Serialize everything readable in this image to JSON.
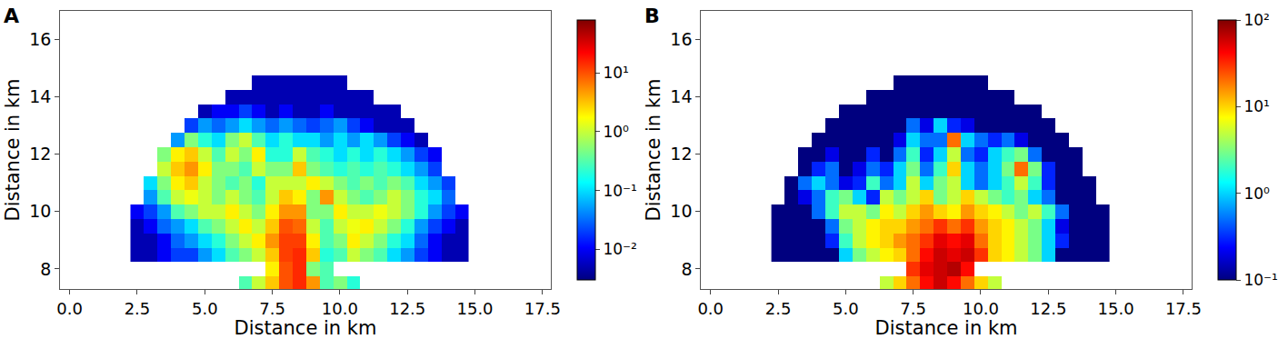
{
  "chart_data": [
    {
      "type": "heatmap",
      "title": "A",
      "log": true,
      "xlabel": "Distance in km",
      "ylabel": "Distance in km",
      "xlim": [
        -0.35,
        17.8
      ],
      "ylim": [
        7.3,
        17.0
      ],
      "xticks": [
        {
          "value": 0,
          "label": "0.0"
        },
        2.5,
        {
          "value": 5,
          "label": "5.0"
        },
        7.5,
        {
          "value": 10,
          "label": "10.0"
        },
        12.5,
        {
          "value": 15,
          "label": "15.0"
        },
        17.5
      ],
      "yticks": [
        8,
        10,
        12,
        14,
        16
      ],
      "zlim": [
        0.003,
        80
      ],
      "zticks": [
        {
          "value": 0.01,
          "label": "10⁻²"
        },
        {
          "value": 0.1,
          "label": "10⁻¹"
        },
        {
          "value": 1,
          "label": "10⁰"
        },
        {
          "value": 10,
          "label": "10¹"
        }
      ],
      "x": [
        2.5,
        3,
        3.5,
        4,
        4.5,
        5,
        5.5,
        6,
        6.5,
        7,
        7.5,
        8,
        8.5,
        9,
        9.5,
        10,
        10.5,
        11,
        11.5,
        12,
        12.5,
        13,
        13.5,
        14,
        14.5
      ],
      "y": [
        7.5,
        8,
        8.5,
        9,
        9.5,
        10,
        10.5,
        11,
        11.5,
        12,
        12.5,
        13,
        13.5,
        14,
        14.5
      ],
      "cells": [
        [
          null,
          null,
          null,
          null,
          null,
          null,
          null,
          null,
          0.3,
          1,
          3,
          10,
          15,
          5,
          0.3,
          0.5,
          0.2,
          null,
          null,
          null,
          null,
          null,
          null,
          null,
          null
        ],
        [
          null,
          null,
          null,
          null,
          null,
          null,
          null,
          null,
          null,
          null,
          2,
          10,
          15,
          0.5,
          0.3,
          null,
          null,
          null,
          null,
          null,
          null,
          null,
          null,
          null,
          null
        ],
        [
          0.005,
          0.005,
          0.01,
          0.02,
          0.02,
          0.05,
          0.1,
          0.3,
          0.5,
          1,
          3,
          12,
          15,
          3,
          0.2,
          0.3,
          1,
          0.5,
          0.3,
          0.1,
          0.05,
          0.02,
          0.01,
          0.005,
          0.005
        ],
        [
          0.005,
          0.005,
          0.01,
          0.03,
          0.05,
          0.1,
          0.2,
          0.5,
          1,
          2,
          5,
          12,
          12,
          2,
          0.3,
          0.5,
          2,
          1,
          0.5,
          0.2,
          0.1,
          0.03,
          0.01,
          0.005,
          0.005
        ],
        [
          0.005,
          0.01,
          0.03,
          0.05,
          0.1,
          0.3,
          0.5,
          1,
          2,
          1,
          3,
          10,
          8,
          1,
          0.3,
          1,
          1.5,
          2,
          1,
          0.5,
          0.2,
          0.05,
          0.02,
          0.01,
          0.005
        ],
        [
          0.01,
          0.02,
          0.05,
          0.3,
          0.5,
          1,
          1,
          2,
          1,
          0.5,
          2,
          5,
          5,
          0.5,
          0.5,
          2,
          1,
          1,
          1.5,
          1,
          0.5,
          0.2,
          0.05,
          0.02,
          0.01
        ],
        [
          null,
          0.05,
          0.3,
          1,
          1.5,
          1,
          0.5,
          1,
          0.5,
          0.3,
          1,
          3,
          2,
          0.5,
          5,
          1,
          0.5,
          0.3,
          0.5,
          1,
          0.5,
          0.2,
          0.1,
          0.03,
          null
        ],
        [
          null,
          0.1,
          0.5,
          2,
          3,
          1,
          0.5,
          0.3,
          0.5,
          0.2,
          1,
          1,
          1,
          2,
          1,
          0.5,
          0.3,
          0.5,
          0.3,
          0.5,
          0.3,
          0.1,
          0.05,
          0.02,
          null
        ],
        [
          null,
          null,
          1,
          3,
          5,
          2,
          0.5,
          0.5,
          0.3,
          1,
          0.5,
          0.5,
          3,
          0.5,
          0.3,
          0.2,
          0.3,
          0.2,
          0.3,
          0.2,
          0.1,
          0.05,
          0.02,
          null,
          null
        ],
        [
          null,
          null,
          0.5,
          2,
          3,
          1,
          0.3,
          1,
          0.5,
          2,
          0.2,
          0.2,
          1,
          0.3,
          0.2,
          0.1,
          0.2,
          0.1,
          0.2,
          0.1,
          0.05,
          0.02,
          0.01,
          null,
          null
        ],
        [
          null,
          null,
          null,
          0.05,
          0.5,
          0.2,
          0.1,
          0.5,
          1,
          0.3,
          0.1,
          0.2,
          0.1,
          0.1,
          0.05,
          0.1,
          0.05,
          0.1,
          0.05,
          0.02,
          0.01,
          0.005,
          null,
          null,
          null
        ],
        [
          null,
          null,
          null,
          null,
          0.02,
          0.05,
          0.03,
          0.05,
          0.1,
          0.05,
          0.03,
          0.05,
          0.03,
          0.02,
          0.03,
          0.05,
          0.02,
          0.01,
          0.005,
          0.005,
          0.005,
          null,
          null,
          null,
          null
        ],
        [
          null,
          null,
          null,
          null,
          null,
          0.005,
          0.01,
          0.01,
          0.02,
          0.01,
          0.005,
          0.01,
          0.005,
          0.005,
          0.01,
          0.005,
          0.005,
          0.005,
          0.005,
          0.005,
          null,
          null,
          null,
          null,
          null
        ],
        [
          null,
          null,
          null,
          null,
          null,
          null,
          null,
          0.005,
          0.005,
          0.005,
          0.005,
          0.005,
          0.005,
          0.005,
          0.005,
          0.005,
          0.005,
          0.005,
          null,
          null,
          null,
          null,
          null,
          null,
          null
        ],
        [
          null,
          null,
          null,
          null,
          null,
          null,
          null,
          null,
          null,
          0.005,
          0.005,
          0.005,
          0.005,
          0.005,
          0.005,
          0.005,
          null,
          null,
          null,
          null,
          null,
          null,
          null,
          null,
          null
        ]
      ]
    },
    {
      "type": "heatmap",
      "title": "B",
      "log": true,
      "xlabel": "Distance in km",
      "ylabel": "Distance in km",
      "xlim": [
        -0.35,
        17.8
      ],
      "ylim": [
        7.3,
        17.0
      ],
      "xticks": [
        {
          "value": 0,
          "label": "0.0"
        },
        2.5,
        {
          "value": 5,
          "label": "5.0"
        },
        7.5,
        {
          "value": 10,
          "label": "10.0"
        },
        12.5,
        {
          "value": 15,
          "label": "15.0"
        },
        17.5
      ],
      "yticks": [
        8,
        10,
        12,
        14,
        16
      ],
      "zlim": [
        0.1,
        100
      ],
      "zticks": [
        {
          "value": 0.1,
          "label": "10⁻¹"
        },
        {
          "value": 1,
          "label": "10⁰"
        },
        {
          "value": 10,
          "label": "10¹"
        },
        {
          "value": 100,
          "label": "10²"
        }
      ],
      "x": [
        2.5,
        3,
        3.5,
        4,
        4.5,
        5,
        5.5,
        6,
        6.5,
        7,
        7.5,
        8,
        8.5,
        9,
        9.5,
        10,
        10.5,
        11,
        11.5,
        12,
        12.5,
        13,
        13.5,
        14,
        14.5
      ],
      "y": [
        7.5,
        8,
        8.5,
        9,
        9.5,
        10,
        10.5,
        11,
        11.5,
        12,
        12.5,
        13,
        13.5,
        14,
        14.5
      ],
      "cells": [
        [
          null,
          null,
          null,
          null,
          null,
          null,
          null,
          null,
          5,
          10,
          20,
          40,
          60,
          40,
          20,
          10,
          5,
          null,
          null,
          null,
          null,
          null,
          null,
          null,
          null
        ],
        [
          null,
          null,
          null,
          null,
          null,
          null,
          null,
          null,
          null,
          null,
          30,
          50,
          60,
          70,
          40,
          null,
          null,
          null,
          null,
          null,
          null,
          null,
          null,
          null,
          null
        ],
        [
          0.1,
          0.1,
          0.1,
          0.1,
          0.1,
          1,
          3,
          5,
          8,
          10,
          20,
          40,
          60,
          50,
          60,
          30,
          10,
          8,
          5,
          3,
          1,
          0.1,
          0.1,
          0.1,
          0.1
        ],
        [
          0.1,
          0.1,
          0.1,
          0.1,
          0.3,
          2,
          5,
          8,
          10,
          15,
          20,
          30,
          50,
          40,
          50,
          20,
          10,
          8,
          5,
          3,
          1,
          0.3,
          0.1,
          0.1,
          0.1
        ],
        [
          0.1,
          0.1,
          0.1,
          0.1,
          0.5,
          3,
          5,
          8,
          10,
          10,
          15,
          20,
          30,
          20,
          30,
          15,
          10,
          8,
          5,
          3,
          1,
          0.2,
          0.1,
          0.1,
          0.1
        ],
        [
          0.1,
          0.1,
          0.1,
          0.5,
          2,
          5,
          5,
          3,
          8,
          5,
          10,
          15,
          10,
          8,
          15,
          10,
          8,
          5,
          3,
          5,
          2,
          0.5,
          0.1,
          0.1,
          0.1
        ],
        [
          null,
          0.1,
          0.2,
          0.5,
          2,
          3,
          1,
          0.3,
          5,
          3,
          5,
          10,
          3,
          5,
          10,
          5,
          3,
          2,
          3,
          1,
          0.5,
          0.1,
          0.1,
          0.1,
          null
        ],
        [
          null,
          0.1,
          0.5,
          1,
          0.5,
          0.2,
          0.3,
          2,
          0.5,
          1,
          5,
          1,
          3,
          5,
          1,
          0.5,
          1,
          2,
          5,
          2,
          0.3,
          0.1,
          0.1,
          0.1,
          null
        ],
        [
          null,
          null,
          0.1,
          0.3,
          0.5,
          0.1,
          0.2,
          0.5,
          0.3,
          1,
          3,
          0.5,
          2,
          10,
          1,
          0.5,
          1,
          3,
          20,
          3,
          0.3,
          0.1,
          0.1,
          null,
          null
        ],
        [
          null,
          null,
          0.1,
          0.1,
          0.2,
          0.1,
          0.1,
          0.3,
          0.1,
          0.5,
          2,
          0.3,
          1,
          5,
          0.5,
          0.3,
          1,
          2,
          3,
          0.5,
          0.1,
          0.1,
          0.1,
          null,
          null
        ],
        [
          null,
          null,
          null,
          0.1,
          0.1,
          0.1,
          0.1,
          0.1,
          0.1,
          0.2,
          1,
          0.5,
          0.5,
          20,
          1,
          0.5,
          0.3,
          0.5,
          0.2,
          0.1,
          0.1,
          0.1,
          null,
          null,
          null
        ],
        [
          null,
          null,
          null,
          null,
          0.1,
          0.1,
          0.1,
          0.1,
          0.1,
          0.1,
          0.5,
          0.2,
          1,
          0.3,
          0.2,
          0.1,
          0.1,
          0.1,
          0.1,
          0.1,
          0.1,
          null,
          null,
          null,
          null
        ],
        [
          null,
          null,
          null,
          null,
          null,
          0.1,
          0.1,
          0.1,
          0.1,
          0.1,
          0.1,
          0.1,
          0.1,
          0.1,
          0.1,
          0.1,
          0.1,
          0.1,
          0.1,
          0.1,
          null,
          null,
          null,
          null,
          null
        ],
        [
          null,
          null,
          null,
          null,
          null,
          null,
          null,
          0.1,
          0.1,
          0.1,
          0.1,
          0.1,
          0.1,
          0.1,
          0.1,
          0.1,
          0.1,
          0.1,
          null,
          null,
          null,
          null,
          null,
          null,
          null
        ],
        [
          null,
          null,
          null,
          null,
          null,
          null,
          null,
          null,
          null,
          0.1,
          0.1,
          0.1,
          0.1,
          0.1,
          0.1,
          0.1,
          null,
          null,
          null,
          null,
          null,
          null,
          null,
          null,
          null
        ]
      ]
    }
  ]
}
